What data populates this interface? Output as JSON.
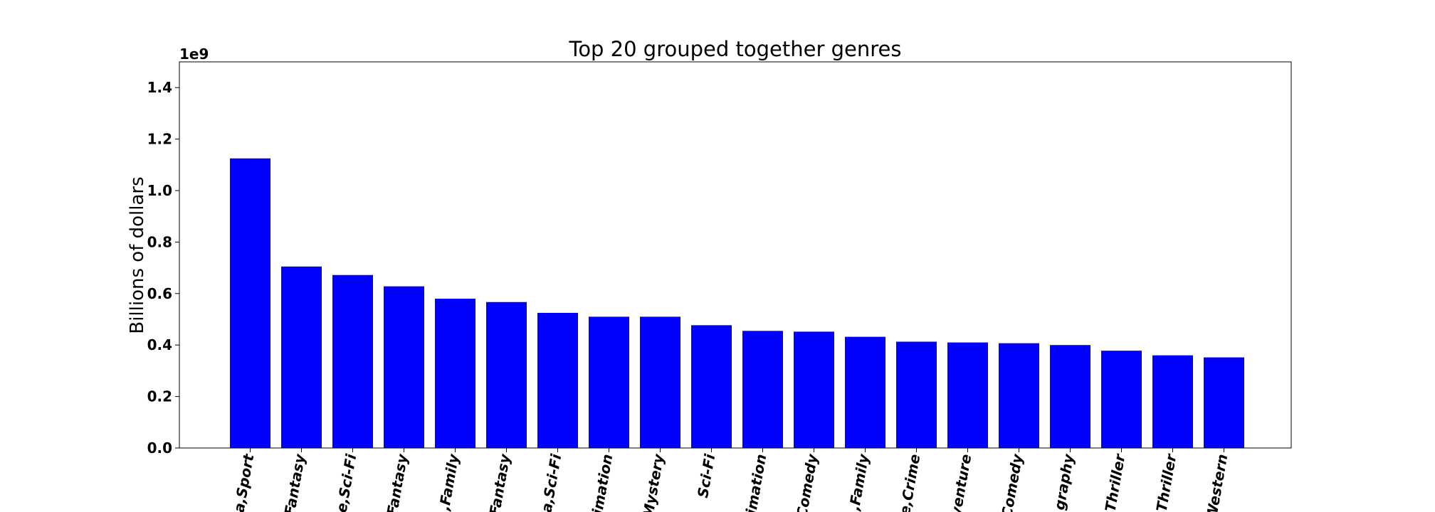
{
  "chart_data": {
    "type": "bar",
    "title": "Top 20 grouped together genres",
    "ylabel": "Billions of dollars",
    "xlabel": "",
    "y_offset_label": "1e9",
    "ylim": [
      0,
      1.5
    ],
    "yticks": [
      "0.0",
      "0.2",
      "0.4",
      "0.6",
      "0.8",
      "1.0",
      "1.2",
      "1.4"
    ],
    "ytick_values": [
      0,
      0.2,
      0.4,
      0.6,
      0.8,
      1.0,
      1.2,
      1.4
    ],
    "grid": false,
    "bar_color": "#0000ff",
    "tick_rotation_deg": 80,
    "categories": [
      "a,Sport",
      "Fantasy",
      "e,Sci-Fi",
      "Fantasy",
      ",Family",
      "Fantasy",
      "a,Sci-Fi",
      "imation",
      "Mystery",
      "Sci-Fi",
      "imation",
      "Comedy",
      ",Family",
      "e,Crime",
      "venture",
      "Comedy",
      "graphy",
      "Thriller",
      "Thriller",
      "Western"
    ],
    "values": [
      1.125,
      0.705,
      0.672,
      0.628,
      0.58,
      0.567,
      0.525,
      0.51,
      0.51,
      0.477,
      0.455,
      0.452,
      0.432,
      0.413,
      0.41,
      0.407,
      0.4,
      0.378,
      0.36,
      0.352
    ]
  }
}
